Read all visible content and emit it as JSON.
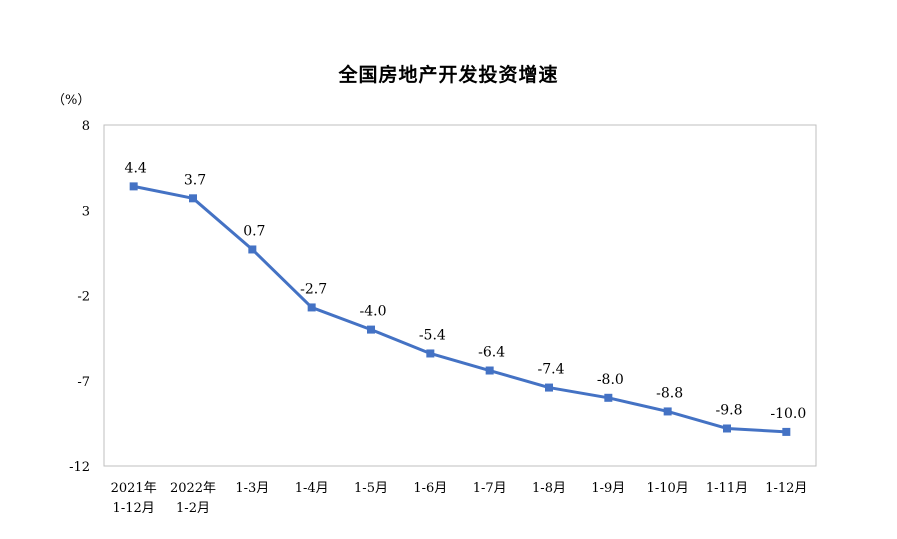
{
  "chart_data": {
    "type": "line",
    "title": "全国房地产开发投资增速",
    "unit": "（%）",
    "categories": [
      [
        "2021年",
        "1-12月"
      ],
      [
        "2022年",
        "1-2月"
      ],
      [
        "1-3月"
      ],
      [
        "1-4月"
      ],
      [
        "1-5月"
      ],
      [
        "1-6月"
      ],
      [
        "1-7月"
      ],
      [
        "1-8月"
      ],
      [
        "1-9月"
      ],
      [
        "1-10月"
      ],
      [
        "1-11月"
      ],
      [
        "1-12月"
      ]
    ],
    "values": [
      4.4,
      3.7,
      0.7,
      -2.7,
      -4.0,
      -5.4,
      -6.4,
      -7.4,
      -8.0,
      -8.8,
      -9.8,
      -10.0
    ],
    "value_labels": [
      "4.4",
      "3.7",
      "0.7",
      "-2.7",
      "-4.0",
      "-5.4",
      "-6.4",
      "-7.4",
      "-8.0",
      "-8.8",
      "-9.8",
      "-10.0"
    ],
    "ylim": [
      -12,
      8
    ],
    "yticks": [
      8,
      3,
      -2,
      -7,
      -12
    ],
    "line_color": "#4472C4",
    "grid": false
  }
}
